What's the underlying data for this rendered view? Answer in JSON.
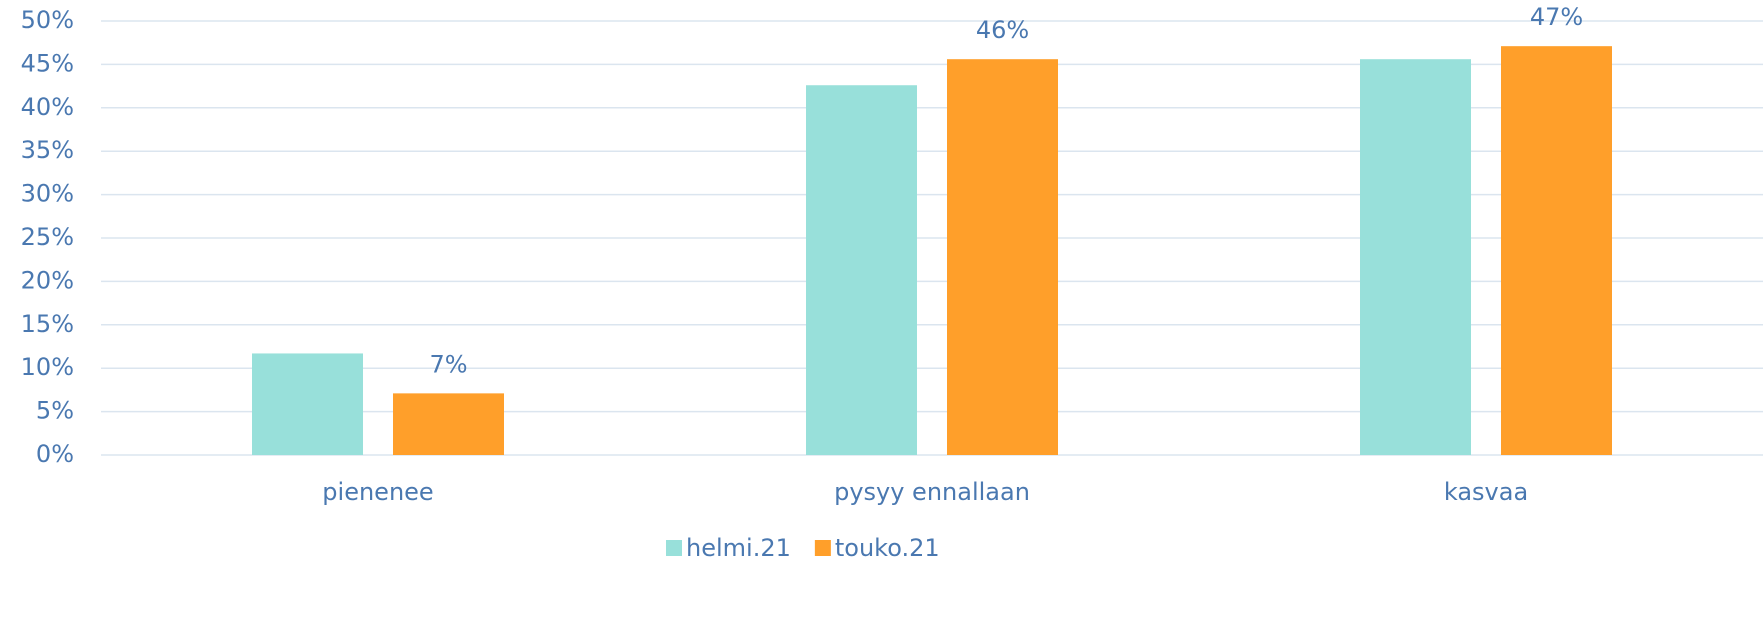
{
  "chart_data": {
    "type": "bar",
    "categories": [
      "pienenee",
      "pysyy ennallaan",
      "kasvaa"
    ],
    "series": [
      {
        "name": "helmi.21",
        "color": "#98e0da",
        "values": [
          11.7,
          42.6,
          45.6
        ]
      },
      {
        "name": "touko.21",
        "color": "#ff9f2a",
        "values": [
          7.1,
          45.6,
          47.1
        ],
        "value_labels": [
          "7%",
          "46%",
          "47%"
        ]
      }
    ],
    "ylim": [
      0,
      50
    ],
    "yticks": [
      {
        "value": 0,
        "label": "0%"
      },
      {
        "value": 5,
        "label": "5%"
      },
      {
        "value": 10,
        "label": "10%"
      },
      {
        "value": 15,
        "label": "15%"
      },
      {
        "value": 20,
        "label": "20%"
      },
      {
        "value": 25,
        "label": "25%"
      },
      {
        "value": 30,
        "label": "30%"
      },
      {
        "value": 35,
        "label": "35%"
      },
      {
        "value": 40,
        "label": "40%"
      },
      {
        "value": 45,
        "label": "45%"
      },
      {
        "value": 50,
        "label": "50%"
      }
    ],
    "grid": true,
    "legend": "bottom"
  }
}
